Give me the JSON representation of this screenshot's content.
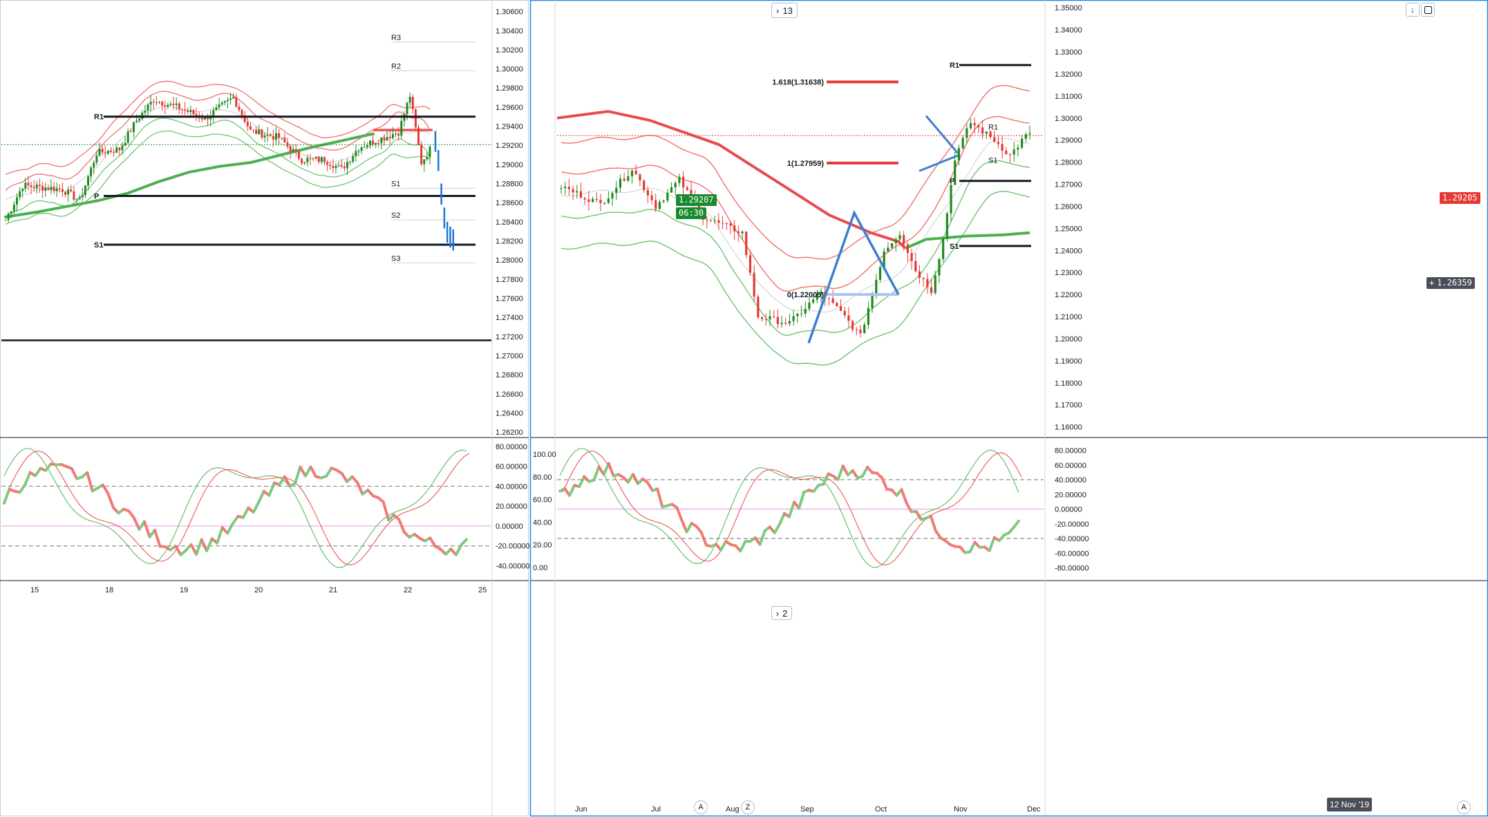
{
  "chart_data": [
    {
      "type": "line",
      "title": "",
      "panel": "left-price",
      "y_ticks": [
        "1.30600",
        "1.30400",
        "1.30200",
        "1.30000",
        "1.29800",
        "1.29600",
        "1.29400",
        "1.29200",
        "1.29000",
        "1.28800",
        "1.28600",
        "1.28400",
        "1.28200",
        "1.28000",
        "1.27800",
        "1.27600",
        "1.27400",
        "1.27200",
        "1.27000",
        "1.26800",
        "1.26600",
        "1.26400",
        "1.26200"
      ],
      "ylim": [
        1.2615,
        1.3072
      ],
      "x_ticks": [
        "15",
        "18",
        "19",
        "20",
        "21",
        "22",
        "25"
      ],
      "last_price": "1.29207",
      "countdown": "06:30",
      "pivot_levels": [
        {
          "name": "R1",
          "value": 1.295
        },
        {
          "name": "P",
          "value": 1.2867
        },
        {
          "name": "S1",
          "value": 1.2816
        }
      ],
      "faint_levels": [
        "R3",
        "R2",
        "R1",
        "P",
        "S1",
        "S2",
        "S3"
      ],
      "horizontal_line": 1.2716,
      "series": [
        {
          "name": "",
          "color": "#ef5350",
          "role": "ema-red",
          "values": [
            1.2936
          ]
        },
        {
          "name": "",
          "color": "#4caf50",
          "role": "ema-green",
          "values": [
            1.2845,
            1.285,
            1.2856,
            1.2862,
            1.287,
            1.2882,
            1.2892,
            1.2898,
            1.2902,
            1.291,
            1.2918,
            1.2925,
            1.2932
          ]
        }
      ],
      "projection": [
        1.2925,
        1.2905,
        1.287,
        1.2845,
        1.283,
        1.2825,
        1.2822
      ]
    },
    {
      "type": "line",
      "title": "",
      "panel": "left-oscillator",
      "y_ticks": [
        "80.00000",
        "60.00000",
        "40.00000",
        "20.00000",
        "0.00000",
        "-20.00000",
        "-40.00000"
      ],
      "ylim": [
        -48,
        82
      ],
      "reference_lines": [
        40,
        0,
        -20
      ]
    },
    {
      "type": "line",
      "title": "",
      "panel": "right-price",
      "y_ticks": [
        "1.35000",
        "1.34000",
        "1.33000",
        "1.32000",
        "1.31000",
        "1.30000",
        "1.29000",
        "1.28000",
        "1.27000",
        "1.26000",
        "1.25000",
        "1.24000",
        "1.23000",
        "1.22000",
        "1.21000",
        "1.20000",
        "1.19000",
        "1.18000",
        "1.17000",
        "1.16000"
      ],
      "ylim": [
        1.1555,
        1.3535
      ],
      "x_ticks": [
        "Jun",
        "Jul",
        "Aug",
        "Sep",
        "Oct",
        "Nov",
        "Dec"
      ],
      "last_price": "1.29205",
      "cursor_price": "1.26359",
      "cursor_date": "12 Nov '19",
      "fib_labels": [
        "1.618(1.31638)",
        "1(1.27959)",
        "0(1.22005)"
      ],
      "pivot_levels": [
        {
          "name": "R1",
          "value": 1.324
        },
        {
          "name": "P",
          "value": 1.2715
        },
        {
          "name": "S1",
          "value": 1.242
        }
      ],
      "panel_counter": "13"
    },
    {
      "type": "line",
      "title": "",
      "panel": "right-oscillator",
      "y_ticks_left": [
        "100.00",
        "80.00",
        "60.00",
        "40.00",
        "20.00",
        "0.00"
      ],
      "y_ticks_right": [
        "80.00000",
        "60.00000",
        "40.00000",
        "20.00000",
        "0.00000",
        "-20.00000",
        "-40.00000",
        "-60.00000",
        "-80.00000"
      ],
      "panel_counter": "2"
    }
  ],
  "ui": {
    "z_button": "Z",
    "a_left": "A",
    "a_right": "A"
  }
}
